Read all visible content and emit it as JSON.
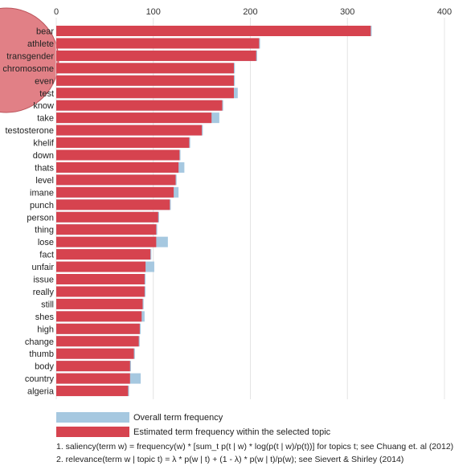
{
  "chart_data": {
    "type": "bar",
    "orientation": "horizontal",
    "title": "",
    "xlabel": "",
    "ylabel": "",
    "xlim": [
      0,
      400
    ],
    "x_ticks": [
      0,
      100,
      200,
      300,
      400
    ],
    "grid": true,
    "categories": [
      "bear",
      "athlete",
      "transgender",
      "chromosome",
      "even",
      "test",
      "know",
      "take",
      "testosterone",
      "khelif",
      "down",
      "thats",
      "level",
      "imane",
      "punch",
      "person",
      "thing",
      "lose",
      "fact",
      "unfair",
      "issue",
      "really",
      "still",
      "shes",
      "high",
      "change",
      "thumb",
      "body",
      "country",
      "algeria"
    ],
    "series": [
      {
        "name": "Overall term frequency",
        "color": "#a6c8e0",
        "values": [
          325,
          210,
          207,
          184,
          184,
          187,
          172,
          168,
          151,
          138,
          128,
          132,
          124,
          126,
          118,
          106,
          104,
          115,
          98,
          101,
          92,
          92,
          90,
          91,
          87,
          86,
          81,
          77,
          87,
          75
        ]
      },
      {
        "name": "Estimated term frequency within the selected topic",
        "color": "#d6434f",
        "values": [
          324,
          209,
          206,
          183,
          183,
          183,
          171,
          160,
          150,
          137,
          127,
          126,
          123,
          121,
          117,
          105,
          103,
          103,
          97,
          92,
          91,
          91,
          89,
          88,
          86,
          85,
          80,
          76,
          76,
          74
        ]
      }
    ]
  },
  "legend": {
    "overall": "Overall term frequency",
    "topic": "Estimated term frequency within the selected topic"
  },
  "footnotes": {
    "line1": "1. saliency(term w) = frequency(w) * [sum_t p(t | w) * log(p(t | w)/p(t))] for topics t; see Chuang et. al (2012)",
    "line2": "2. relevance(term w | topic t) = λ * p(w | t) + (1 - λ) * p(w | t)/p(w); see Sievert & Shirley (2014)"
  },
  "colors": {
    "overall": "#a6c8e0",
    "topic": "#d6434f",
    "circle": "#e07a80",
    "grid": "#e4e4e4"
  }
}
